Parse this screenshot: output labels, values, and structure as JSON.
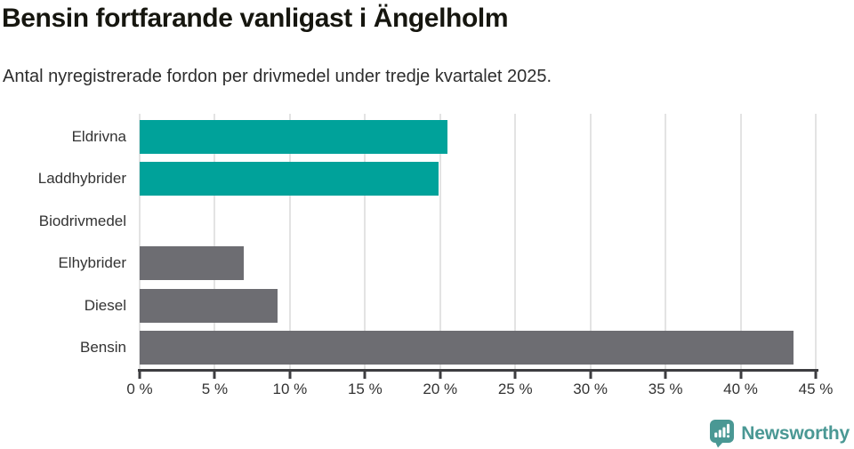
{
  "chart_data": {
    "type": "bar",
    "orientation": "horizontal",
    "title": "Bensin fortfarande vanligast i Ängelholm",
    "subtitle": "Antal nyregistrerade fordon per drivmedel under tredje kvartalet 2025.",
    "categories": [
      "Eldrivna",
      "Laddhybrider",
      "Biodrivmedel",
      "Elhybrider",
      "Diesel",
      "Bensin"
    ],
    "values": [
      20.5,
      19.9,
      0,
      6.9,
      9.2,
      43.5
    ],
    "bar_colors": [
      "#00a29a",
      "#00a29a",
      "#6d6d72",
      "#6d6d72",
      "#6d6d72",
      "#6d6d72"
    ],
    "unit": "%",
    "xlim": [
      0,
      45
    ],
    "x_ticks": [
      0,
      5,
      10,
      15,
      20,
      25,
      30,
      35,
      40,
      45
    ],
    "x_tick_labels": [
      "0 %",
      "5 %",
      "10 %",
      "15 %",
      "20 %",
      "25 %",
      "30 %",
      "35 %",
      "40 %",
      "45 %"
    ],
    "grid": "vertical-gridlines",
    "legend": "none"
  },
  "colors": {
    "accent_teal": "#00a29a",
    "bar_gray": "#6d6d72",
    "gridline": "#e3e3e3",
    "axis": "#3d3d40",
    "title_text": "#16160f",
    "body_text": "#333333",
    "logo_teal": "#4a9894"
  },
  "footer": {
    "brand": "Newsworthy"
  }
}
